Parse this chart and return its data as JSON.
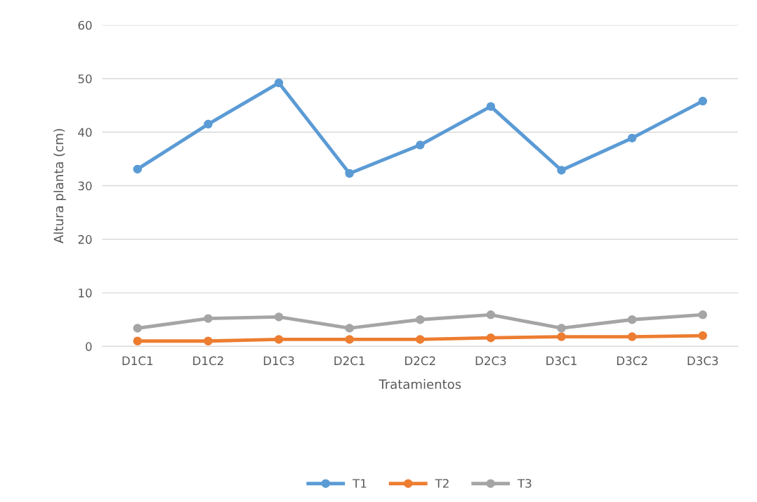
{
  "chart_data": {
    "type": "line",
    "xlabel": "Tratamientos",
    "ylabel": "Altura planta (cm)",
    "categories": [
      "D1C1",
      "D1C2",
      "D1C3",
      "D2C1",
      "D2C2",
      "D2C3",
      "D3C1",
      "D3C2",
      "D3C3"
    ],
    "series": [
      {
        "name": "T1",
        "color": "#5b9bd5",
        "values": [
          33.1,
          41.5,
          49.2,
          32.3,
          37.6,
          44.8,
          32.9,
          38.9,
          45.8
        ]
      },
      {
        "name": "T2",
        "color": "#ed7d31",
        "values": [
          1.0,
          1.0,
          1.3,
          1.3,
          1.3,
          1.6,
          1.8,
          1.8,
          2.0
        ]
      },
      {
        "name": "T3",
        "color": "#a5a5a5",
        "values": [
          3.4,
          5.2,
          5.5,
          3.4,
          5.0,
          5.9,
          3.4,
          5.0,
          5.9
        ]
      }
    ],
    "ylim": [
      0,
      60
    ],
    "yticks": [
      0,
      10,
      20,
      30,
      40,
      50,
      60
    ],
    "grid": "y",
    "legend": "bottom",
    "marker": "circle",
    "line_style": "solid"
  }
}
